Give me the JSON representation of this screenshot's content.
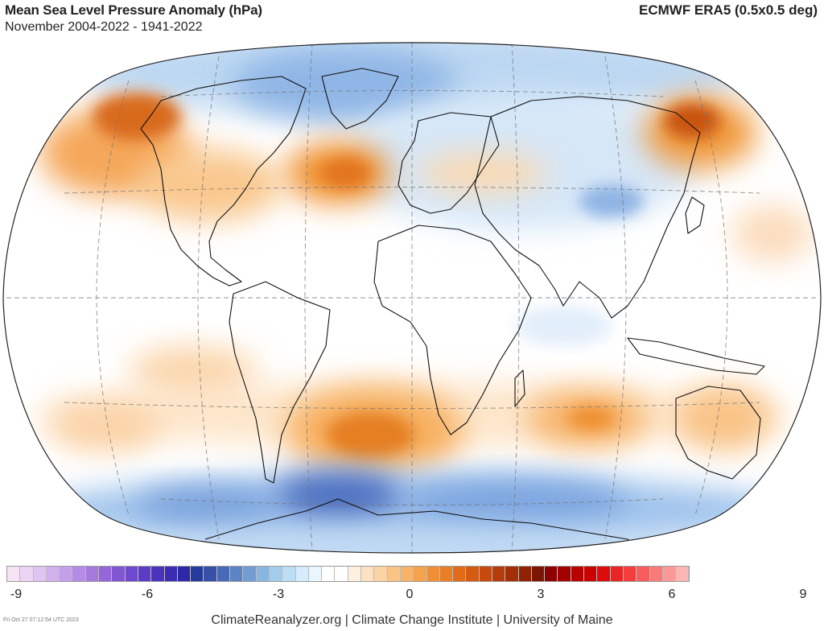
{
  "header": {
    "title": "Mean Sea Level Pressure Anomaly (hPa)",
    "subtitle": "November 2004-2022 - 1941-2022",
    "source": "ECMWF ERA5 (0.5x0.5 deg)"
  },
  "map": {
    "projection": "Robinson-like world",
    "ocean_color": "#ffffff",
    "graticule": "dashed grey",
    "anomaly_regions": [
      {
        "name": "North Pacific high",
        "sign": "positive",
        "strength": "strong"
      },
      {
        "name": "North Atlantic high",
        "sign": "positive",
        "strength": "strong"
      },
      {
        "name": "East Siberia high",
        "sign": "positive",
        "strength": "strong"
      },
      {
        "name": "South Atlantic high",
        "sign": "positive",
        "strength": "strong"
      },
      {
        "name": "South Indian Ocean high",
        "sign": "positive",
        "strength": "moderate"
      },
      {
        "name": "Southern Ocean / Antarctica low",
        "sign": "negative",
        "strength": "strong"
      },
      {
        "name": "Arctic / Greenland low",
        "sign": "negative",
        "strength": "moderate"
      }
    ]
  },
  "colorbar": {
    "ticks": [
      "-9",
      "-6",
      "-3",
      "0",
      "3",
      "6",
      "9"
    ],
    "colors": [
      "#f6e4f6",
      "#ecd4f4",
      "#e0c4f1",
      "#d2b2ee",
      "#c49fea",
      "#b58ce5",
      "#a679df",
      "#9466d9",
      "#8156d3",
      "#6e48cd",
      "#5c3cc7",
      "#4b33bd",
      "#3b2cb2",
      "#2d28a6",
      "#253a9c",
      "#3650a8",
      "#476ab6",
      "#5b84c5",
      "#719dd3",
      "#89b5e1",
      "#a3cbec",
      "#bcdef5",
      "#d4ecfb",
      "#eaf6fd",
      "#ffffff",
      "#ffffff",
      "#fdf0e1",
      "#fce2c3",
      "#fbd3a4",
      "#f9c486",
      "#f7b368",
      "#f4a24c",
      "#f09036",
      "#e97e25",
      "#e06c19",
      "#d45b12",
      "#c64a0d",
      "#b53b0a",
      "#a32e07",
      "#8f2205",
      "#7c1604",
      "#8e0000",
      "#a30000",
      "#b80000",
      "#cc0000",
      "#dd0c0c",
      "#ec2323",
      "#f43e3e",
      "#f85c5c",
      "#fa7a7a",
      "#fc9898",
      "#fdb6b6"
    ]
  },
  "footer": {
    "credits": "ClimateReanalyzer.org | Climate Change Institute | University of Maine",
    "timestamp": "Fri Oct 27 07:12:54 UTC 2023"
  }
}
